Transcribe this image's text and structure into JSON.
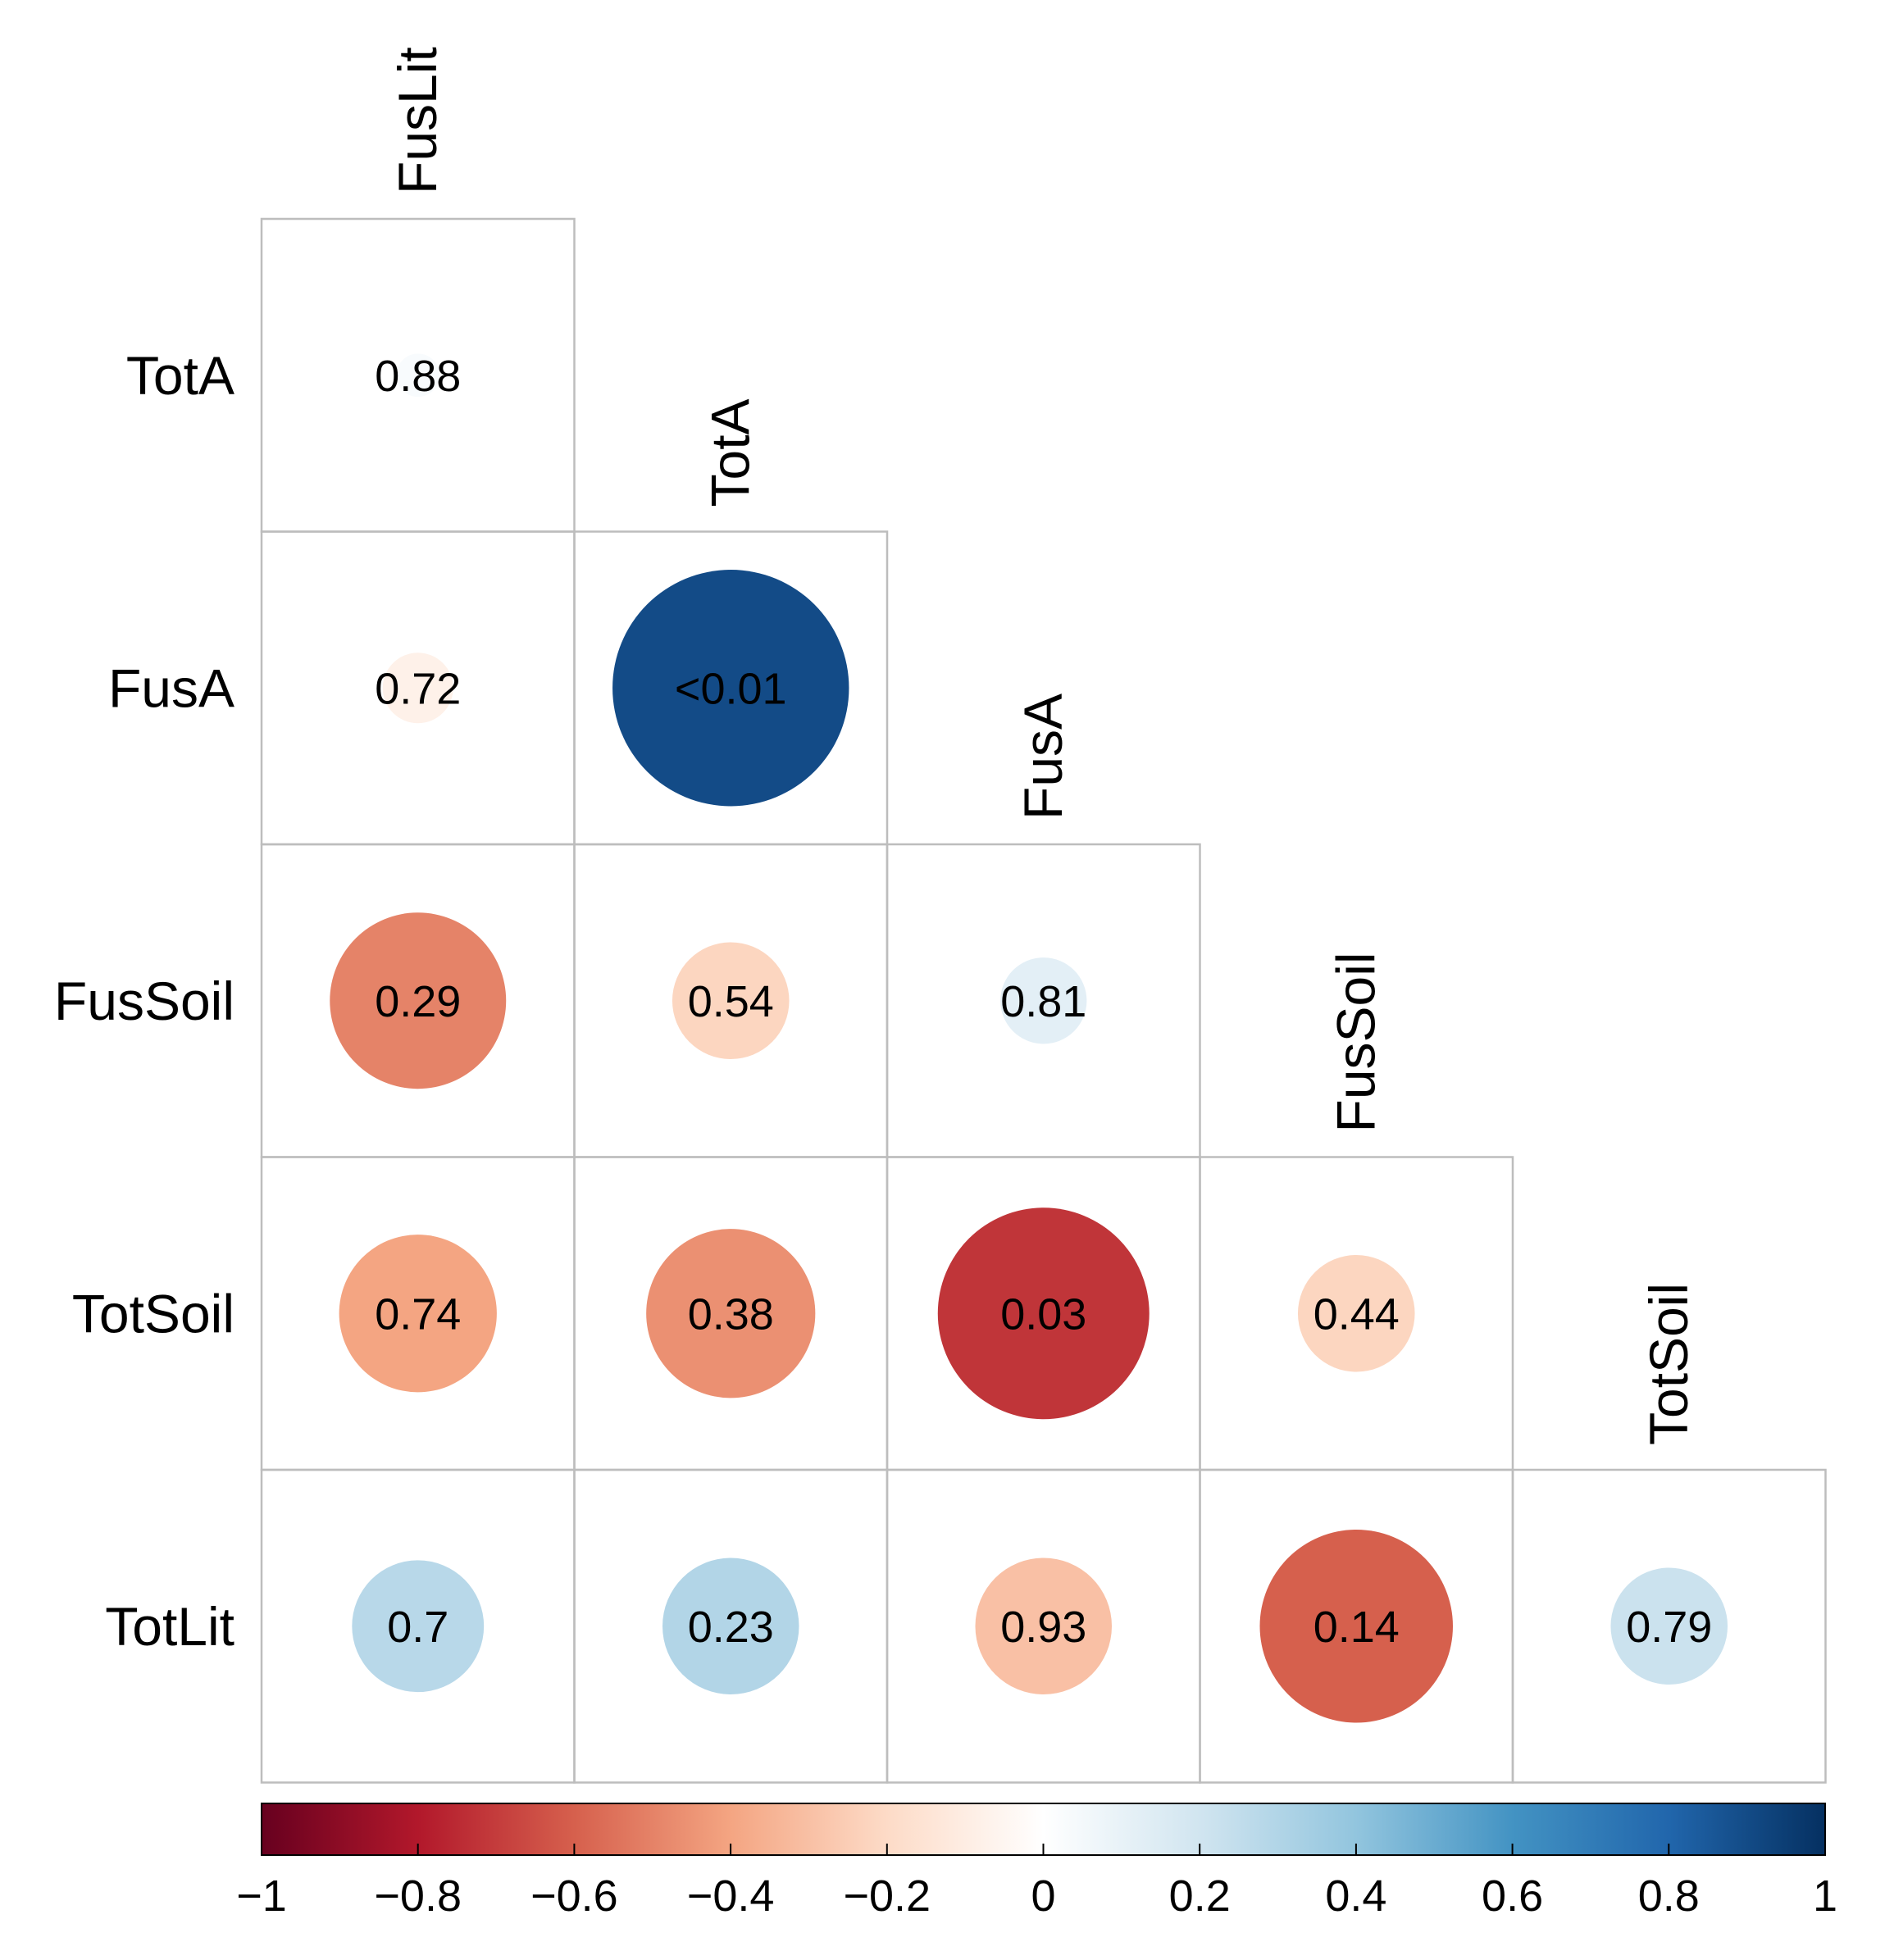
{
  "chart_data": {
    "type": "heatmap",
    "subtype": "correlation-circle-lower-triangle",
    "variables_rows": [
      "TotA",
      "FusA",
      "FusSoil",
      "TotSoil",
      "TotLit"
    ],
    "variables_cols": [
      "FusLit",
      "TotA",
      "FusA",
      "FusSoil",
      "TotSoil"
    ],
    "cells": [
      {
        "row": "TotA",
        "col": "FusLit",
        "r": 0.03,
        "p_label": "0.88"
      },
      {
        "row": "FusA",
        "col": "FusLit",
        "r": -0.08,
        "p_label": "0.72"
      },
      {
        "row": "FusA",
        "col": "TotA",
        "r": 0.9,
        "p_label": "<0.01"
      },
      {
        "row": "FusSoil",
        "col": "FusLit",
        "r": -0.5,
        "p_label": "0.29"
      },
      {
        "row": "FusSoil",
        "col": "TotA",
        "r": -0.22,
        "p_label": "0.54"
      },
      {
        "row": "FusSoil",
        "col": "FusA",
        "r": 0.12,
        "p_label": "0.81"
      },
      {
        "row": "TotSoil",
        "col": "FusLit",
        "r": -0.4,
        "p_label": "0.74"
      },
      {
        "row": "TotSoil",
        "col": "TotA",
        "r": -0.46,
        "p_label": "0.38"
      },
      {
        "row": "TotSoil",
        "col": "FusA",
        "r": -0.72,
        "p_label": "0.03"
      },
      {
        "row": "TotSoil",
        "col": "FusSoil",
        "r": -0.22,
        "p_label": "0.44"
      },
      {
        "row": "TotLit",
        "col": "FusLit",
        "r": 0.28,
        "p_label": "0.7"
      },
      {
        "row": "TotLit",
        "col": "TotA",
        "r": 0.3,
        "p_label": "0.23"
      },
      {
        "row": "TotLit",
        "col": "FusA",
        "r": -0.3,
        "p_label": "0.93"
      },
      {
        "row": "TotLit",
        "col": "FusSoil",
        "r": -0.6,
        "p_label": "0.14"
      },
      {
        "row": "TotLit",
        "col": "TotSoil",
        "r": 0.22,
        "p_label": "0.79"
      }
    ],
    "colorbar": {
      "range": [
        -1,
        1
      ],
      "ticks": [
        -1,
        -0.8,
        -0.6,
        -0.4,
        -0.2,
        0,
        0.2,
        0.4,
        0.6,
        0.8,
        1
      ],
      "tick_labels": [
        "−1",
        "−0.8",
        "−0.6",
        "−0.4",
        "−0.2",
        "0",
        "0.2",
        "0.4",
        "0.6",
        "0.8",
        "1"
      ],
      "colors": [
        "#67001f",
        "#b2182b",
        "#d6604d",
        "#f4a582",
        "#fddbc7",
        "#ffffff",
        "#d1e5f0",
        "#92c5de",
        "#4393c3",
        "#2166ac",
        "#053061"
      ]
    }
  }
}
